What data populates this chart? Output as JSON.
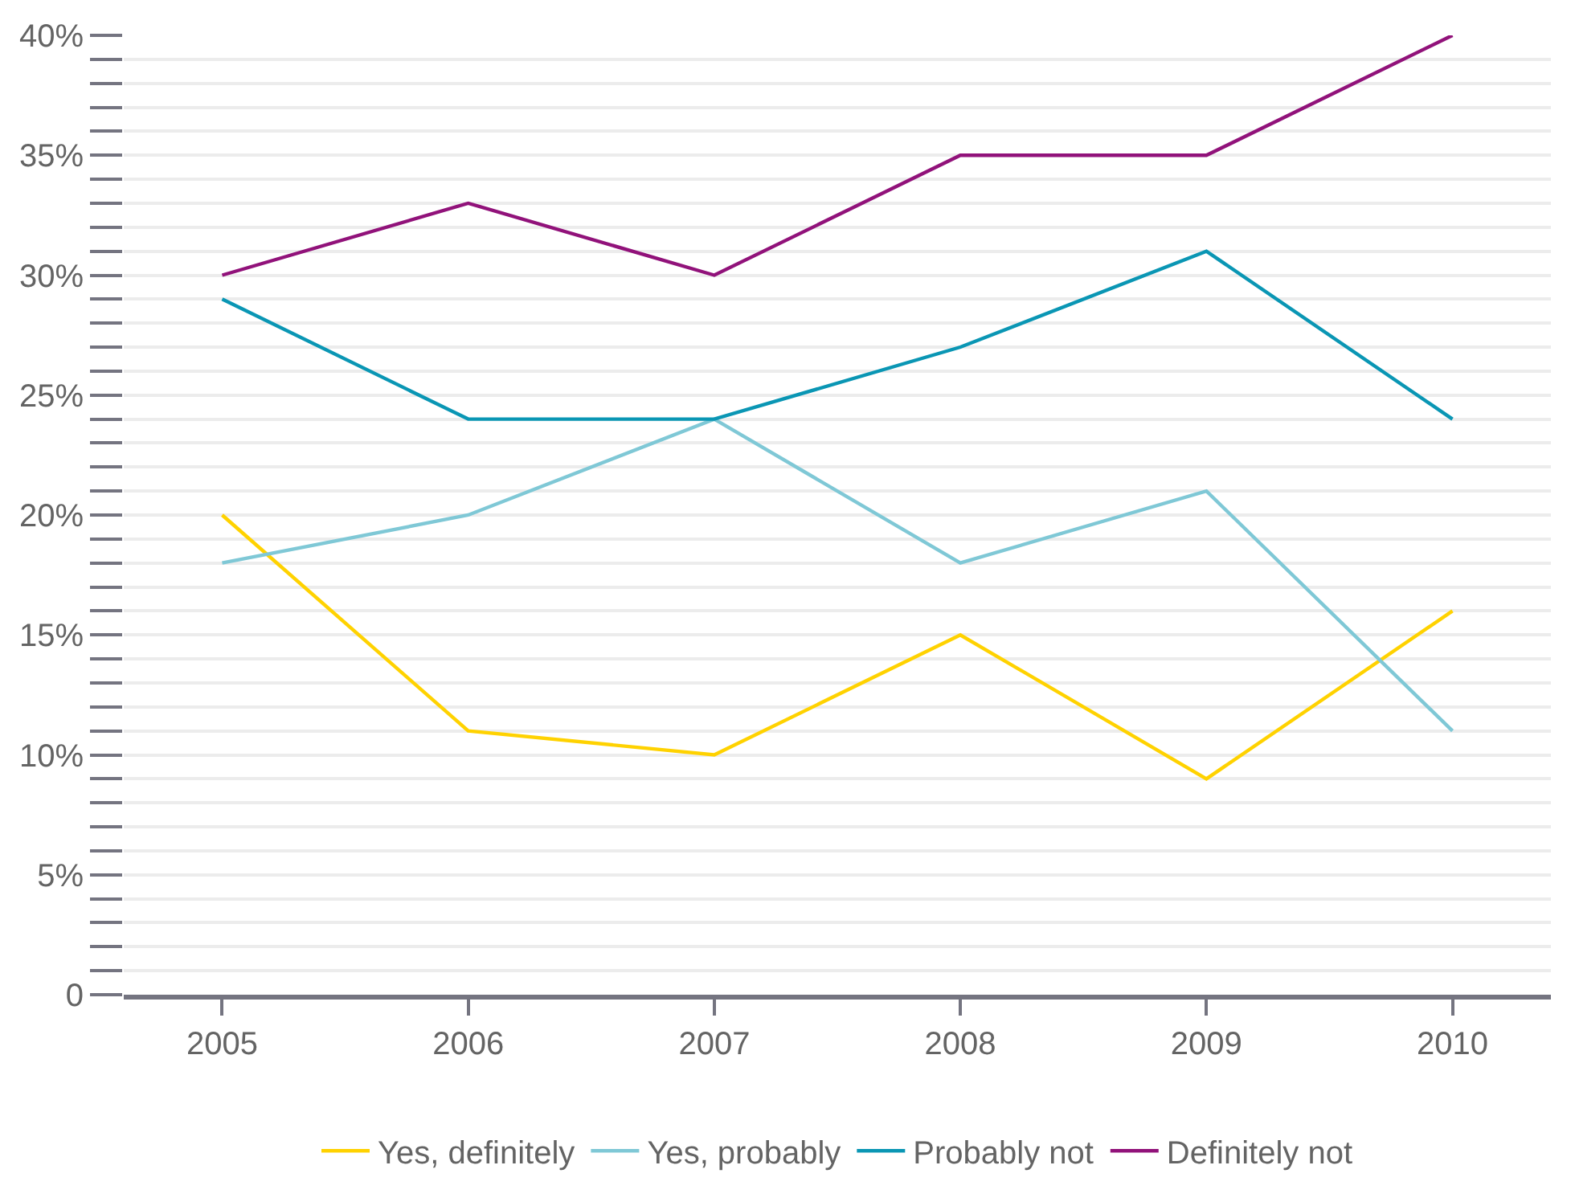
{
  "chart_data": {
    "type": "line",
    "categories": [
      "2005",
      "2006",
      "2007",
      "2008",
      "2009",
      "2010"
    ],
    "series": [
      {
        "name": "Yes, definitely",
        "color": "#ffd200",
        "values": [
          20,
          11,
          10,
          15,
          9,
          16
        ]
      },
      {
        "name": "Yes, probably",
        "color": "#7fc8d6",
        "values": [
          18,
          20,
          24,
          18,
          21,
          11
        ]
      },
      {
        "name": "Probably not",
        "color": "#0a96b4",
        "values": [
          29,
          24,
          24,
          27,
          31,
          24
        ]
      },
      {
        "name": "Definitely not",
        "color": "#91127a",
        "values": [
          30,
          33,
          30,
          35,
          35,
          40
        ]
      }
    ],
    "ylim": [
      0,
      40
    ],
    "yticks": [
      0,
      {
        "value": 1,
        "label": null
      },
      {
        "value": 2,
        "label": null
      },
      {
        "value": 3,
        "label": null
      },
      {
        "value": 4,
        "label": null
      },
      {
        "value": 5,
        "label": "5%"
      },
      {
        "value": 6,
        "label": null
      },
      {
        "value": 7,
        "label": null
      },
      {
        "value": 8,
        "label": null
      },
      {
        "value": 9,
        "label": null
      },
      {
        "value": 10,
        "label": "10%"
      },
      {
        "value": 11,
        "label": null
      },
      {
        "value": 12,
        "label": null
      },
      {
        "value": 13,
        "label": null
      },
      {
        "value": 14,
        "label": null
      },
      {
        "value": 15,
        "label": "15%"
      },
      {
        "value": 16,
        "label": null
      },
      {
        "value": 17,
        "label": null
      },
      {
        "value": 18,
        "label": null
      },
      {
        "value": 19,
        "label": null
      },
      {
        "value": 20,
        "label": "20%"
      },
      {
        "value": 21,
        "label": null
      },
      {
        "value": 22,
        "label": null
      },
      {
        "value": 23,
        "label": null
      },
      {
        "value": 24,
        "label": null
      },
      {
        "value": 25,
        "label": "25%"
      },
      {
        "value": 26,
        "label": null
      },
      {
        "value": 27,
        "label": null
      },
      {
        "value": 28,
        "label": null
      },
      {
        "value": 29,
        "label": null
      },
      {
        "value": 30,
        "label": "30%"
      },
      {
        "value": 31,
        "label": null
      },
      {
        "value": 32,
        "label": null
      },
      {
        "value": 33,
        "label": null
      },
      {
        "value": 34,
        "label": null
      },
      {
        "value": 35,
        "label": "35%"
      },
      {
        "value": 36,
        "label": null
      },
      {
        "value": 37,
        "label": null
      },
      {
        "value": 38,
        "label": null
      },
      {
        "value": 39,
        "label": null
      },
      {
        "value": 40,
        "label": "40%"
      }
    ],
    "grid": "y",
    "legend": "bottom",
    "marker": "none",
    "line_style": "solid"
  }
}
